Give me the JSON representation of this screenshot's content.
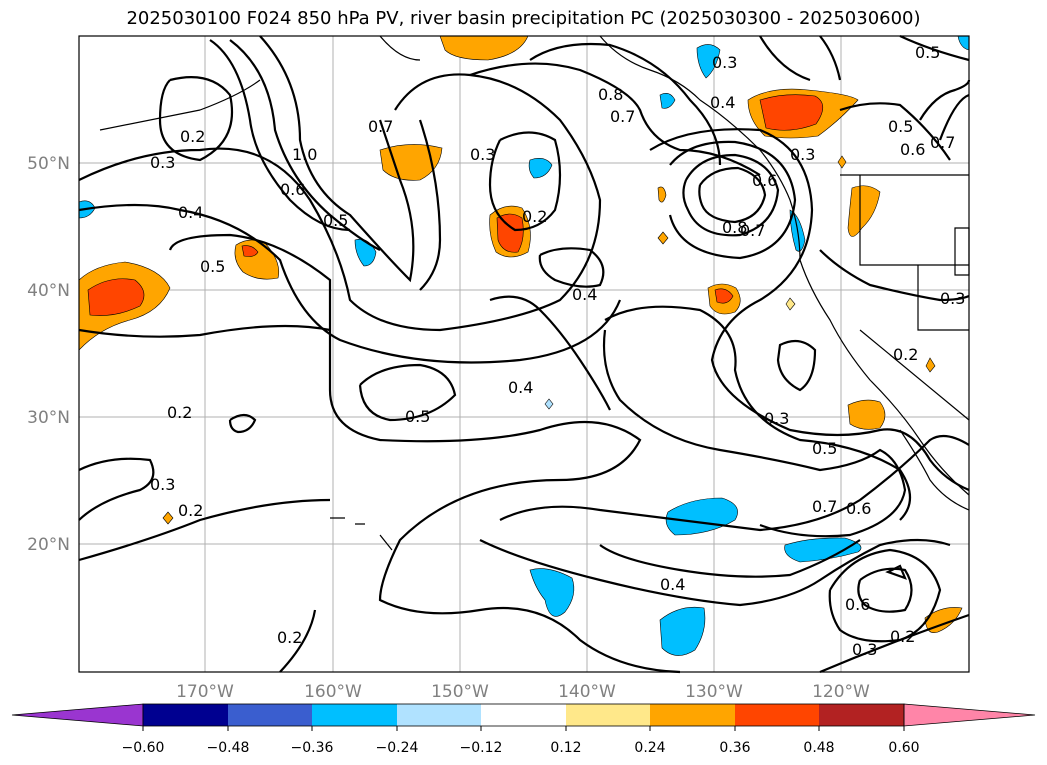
{
  "title": "2025030100 F024 850 hPa PV, river basin precipitation PC (2025030300 - 2025030600)",
  "lat_labels": [
    "50°N",
    "40°N",
    "30°N",
    "20°N"
  ],
  "lon_labels": [
    "170°W",
    "160°W",
    "150°W",
    "140°W",
    "130°W",
    "120°W"
  ],
  "colorbar": {
    "ticks": [
      "−0.60",
      "−0.48",
      "−0.36",
      "−0.24",
      "−0.12",
      "0.12",
      "0.24",
      "0.36",
      "0.48",
      "0.60"
    ],
    "colors": [
      "#9a35d0",
      "#000090",
      "#3a5ecf",
      "#00bfff",
      "#b0e2ff",
      "#ffffff",
      "#ffe88a",
      "#ffa500",
      "#ff4500",
      "#b22222",
      "#ff85a8"
    ]
  },
  "contour_labels": [
    "0.2",
    "0.3",
    "0.4",
    "0.5",
    "0.6",
    "0.7",
    "0.8",
    "1.0"
  ],
  "shading_colors": {
    "pos_low": "#ffe88a",
    "pos_mid": "#ffa500",
    "pos_high": "#ff4500",
    "neg_low": "#b0e2ff",
    "neg_mid": "#00bfff"
  }
}
